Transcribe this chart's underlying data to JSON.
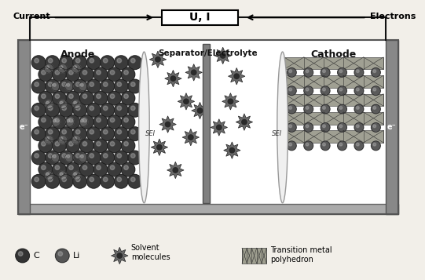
{
  "bg_color": "#f2efe9",
  "circuit_box_label": "U, I",
  "current_label": "Current",
  "electrons_label": "Electrons",
  "anode_label": "Anode",
  "cathode_label": "Cathode",
  "separator_label": "Separator/Electrolyte",
  "sei_label": "SEI",
  "legend_items": [
    "C",
    "Li",
    "Solvent\nmolecules",
    "Transition metal\npolyhedron"
  ],
  "text_color": "#111111",
  "sphere_c_color": "#3a3a3a",
  "sphere_li_color": "#5a5a5a",
  "container_fill": "#ffffff",
  "container_wall": "#999999",
  "sei_fill": "#e0e0e0",
  "separator_fill": "#888888",
  "solvent_color": "#666666",
  "poly_color": "#909080",
  "wire_color": "#111111"
}
